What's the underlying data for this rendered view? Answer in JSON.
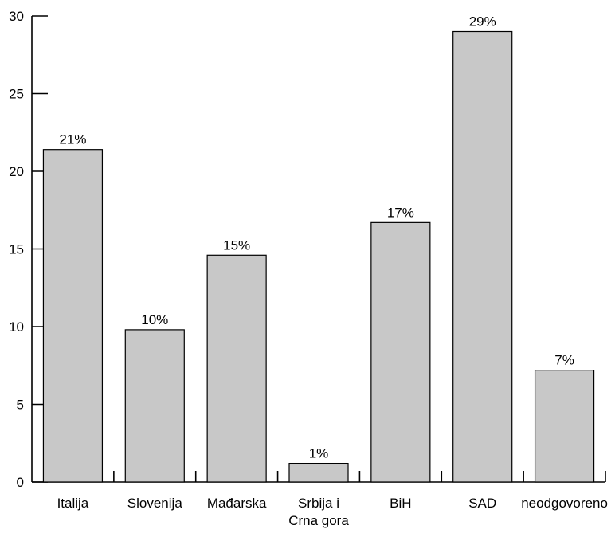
{
  "chart_data": {
    "type": "bar",
    "categories": [
      "Italija",
      "Slovenija",
      "Mađarska",
      "Srbija i Crna gora",
      "BiH",
      "SAD",
      "neodgovoreno"
    ],
    "category_lines": [
      [
        "Italija"
      ],
      [
        "Slovenija"
      ],
      [
        "Mađarska"
      ],
      [
        "Srbija i",
        "Crna gora"
      ],
      [
        "BiH"
      ],
      [
        "SAD"
      ],
      [
        "neodgovoreno"
      ]
    ],
    "values": [
      21.4,
      9.8,
      14.6,
      1.2,
      16.7,
      29.0,
      7.2
    ],
    "data_labels": [
      "21%",
      "10%",
      "15%",
      "1%",
      "17%",
      "29%",
      "7%"
    ],
    "title": "",
    "xlabel": "",
    "ylabel": "",
    "ylim": [
      0,
      30
    ],
    "yticks": [
      0,
      5,
      10,
      15,
      20,
      25,
      30
    ],
    "grid": false,
    "colors": {
      "bar_fill": "#c8c8c8",
      "bar_stroke": "#000000"
    }
  }
}
